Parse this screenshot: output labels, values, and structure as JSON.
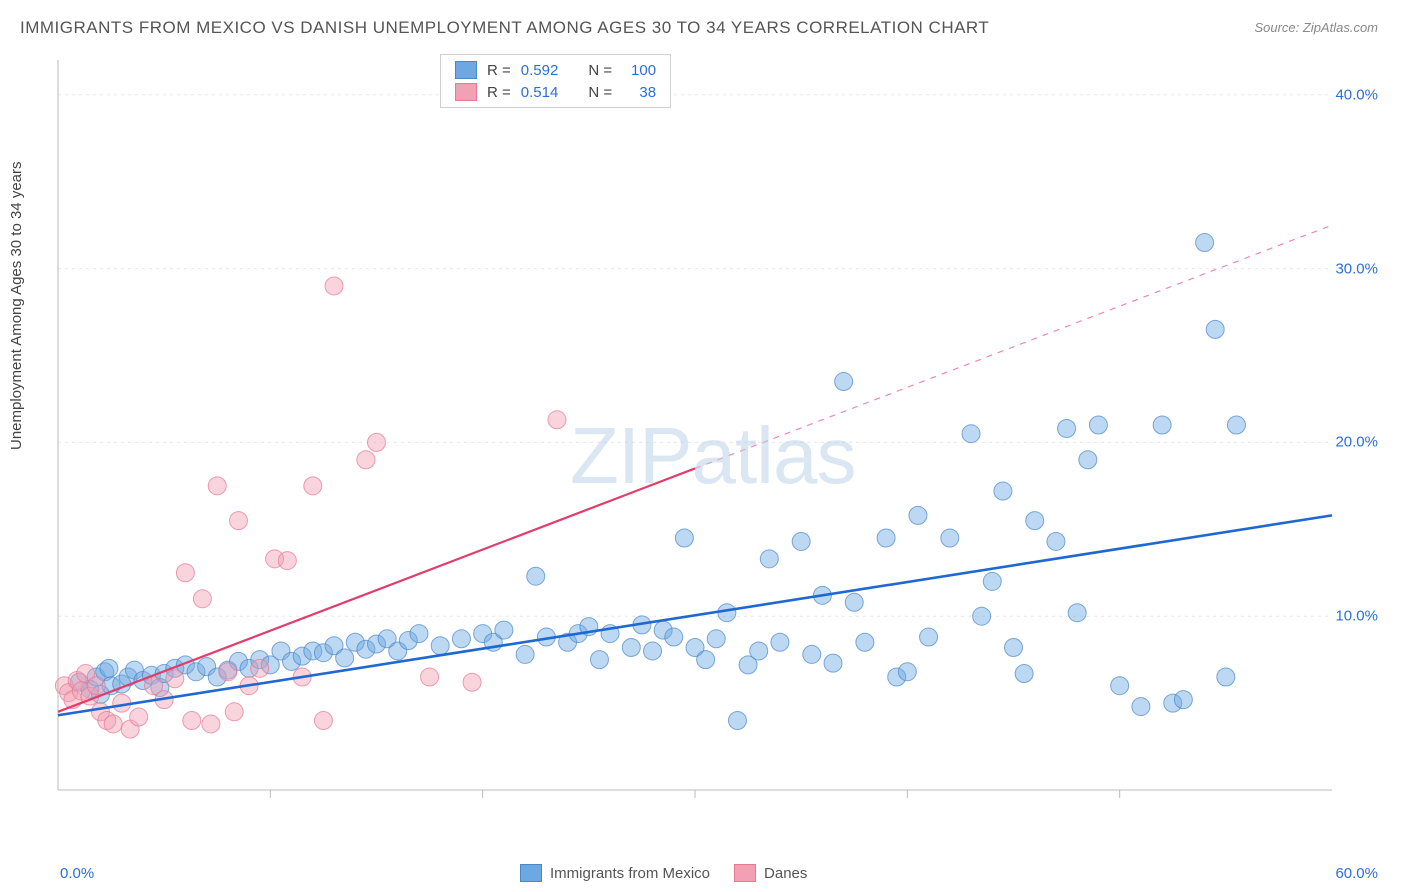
{
  "title": "IMMIGRANTS FROM MEXICO VS DANISH UNEMPLOYMENT AMONG AGES 30 TO 34 YEARS CORRELATION CHART",
  "source_label": "Source: ZipAtlas.com",
  "watermark": "ZIPatlas",
  "ylabel": "Unemployment Among Ages 30 to 34 years",
  "chart": {
    "type": "scatter",
    "background_color": "#ffffff",
    "grid_color": "#e8e8e8",
    "axis_color": "#bbbbbb",
    "xlim": [
      0,
      60
    ],
    "ylim": [
      0,
      42
    ],
    "x_axis": {
      "min_label": "0.0%",
      "max_label": "60.0%",
      "label_color": "#2b6fd6"
    },
    "y_axis": {
      "ticks": [
        10,
        20,
        30,
        40
      ],
      "tick_labels": [
        "10.0%",
        "20.0%",
        "30.0%",
        "40.0%"
      ],
      "label_color": "#2b6fd6"
    },
    "marker_radius": 9,
    "marker_opacity": 0.45,
    "series": [
      {
        "key": "mexico",
        "label": "Immigrants from Mexico",
        "color": "#6da8e2",
        "stroke": "#4a88c8",
        "R": "0.592",
        "N": "100",
        "trend": {
          "x1": 0,
          "y1": 4.3,
          "x2": 60,
          "y2": 15.8,
          "width": 2.6,
          "color": "#1f68d1",
          "dash": ""
        },
        "points": [
          [
            1,
            6.2
          ],
          [
            1.5,
            5.8
          ],
          [
            1.8,
            6.5
          ],
          [
            2,
            5.5
          ],
          [
            2.2,
            6.8
          ],
          [
            2.5,
            6.0
          ],
          [
            2.4,
            7.0
          ],
          [
            3,
            6.1
          ],
          [
            3.3,
            6.5
          ],
          [
            3.6,
            6.9
          ],
          [
            4,
            6.3
          ],
          [
            4.4,
            6.6
          ],
          [
            4.8,
            5.9
          ],
          [
            5,
            6.7
          ],
          [
            5.5,
            7.0
          ],
          [
            6,
            7.2
          ],
          [
            6.5,
            6.8
          ],
          [
            7,
            7.1
          ],
          [
            7.5,
            6.5
          ],
          [
            8,
            6.9
          ],
          [
            8.5,
            7.4
          ],
          [
            9,
            7.0
          ],
          [
            9.5,
            7.5
          ],
          [
            10,
            7.2
          ],
          [
            10.5,
            8.0
          ],
          [
            11,
            7.4
          ],
          [
            11.5,
            7.7
          ],
          [
            12,
            8.0
          ],
          [
            12.5,
            7.9
          ],
          [
            13,
            8.3
          ],
          [
            13.5,
            7.6
          ],
          [
            14,
            8.5
          ],
          [
            14.5,
            8.1
          ],
          [
            15,
            8.4
          ],
          [
            15.5,
            8.7
          ],
          [
            16,
            8.0
          ],
          [
            16.5,
            8.6
          ],
          [
            17,
            9.0
          ],
          [
            18,
            8.3
          ],
          [
            19,
            8.7
          ],
          [
            20,
            9.0
          ],
          [
            20.5,
            8.5
          ],
          [
            21,
            9.2
          ],
          [
            22,
            7.8
          ],
          [
            22.5,
            12.3
          ],
          [
            23,
            8.8
          ],
          [
            24,
            8.5
          ],
          [
            24.5,
            9.0
          ],
          [
            25,
            9.4
          ],
          [
            25.5,
            7.5
          ],
          [
            26,
            9.0
          ],
          [
            27,
            8.2
          ],
          [
            27.5,
            9.5
          ],
          [
            28,
            8.0
          ],
          [
            28.5,
            9.2
          ],
          [
            29,
            8.8
          ],
          [
            29.5,
            14.5
          ],
          [
            30,
            8.2
          ],
          [
            30.5,
            7.5
          ],
          [
            31,
            8.7
          ],
          [
            31.5,
            10.2
          ],
          [
            32,
            4.0
          ],
          [
            32.5,
            7.2
          ],
          [
            33,
            8.0
          ],
          [
            33.5,
            13.3
          ],
          [
            34,
            8.5
          ],
          [
            35,
            14.3
          ],
          [
            35.5,
            7.8
          ],
          [
            36,
            11.2
          ],
          [
            36.5,
            7.3
          ],
          [
            37,
            23.5
          ],
          [
            37.5,
            10.8
          ],
          [
            38,
            8.5
          ],
          [
            39,
            14.5
          ],
          [
            39.5,
            6.5
          ],
          [
            40,
            6.8
          ],
          [
            40.5,
            15.8
          ],
          [
            41,
            8.8
          ],
          [
            42,
            14.5
          ],
          [
            43,
            20.5
          ],
          [
            43.5,
            10.0
          ],
          [
            44,
            12.0
          ],
          [
            44.5,
            17.2
          ],
          [
            45,
            8.2
          ],
          [
            45.5,
            6.7
          ],
          [
            46,
            15.5
          ],
          [
            47,
            14.3
          ],
          [
            47.5,
            20.8
          ],
          [
            48,
            10.2
          ],
          [
            48.5,
            19.0
          ],
          [
            49,
            21.0
          ],
          [
            50,
            6.0
          ],
          [
            51,
            4.8
          ],
          [
            52,
            21.0
          ],
          [
            52.5,
            5.0
          ],
          [
            53,
            5.2
          ],
          [
            54,
            31.5
          ],
          [
            54.5,
            26.5
          ],
          [
            55,
            6.5
          ],
          [
            55.5,
            21.0
          ]
        ]
      },
      {
        "key": "danes",
        "label": "Danes",
        "color": "#f2a0b3",
        "stroke": "#e67891",
        "R": "0.514",
        "N": "38",
        "trend": {
          "x1": 0,
          "y1": 4.5,
          "x2": 30,
          "y2": 18.5,
          "width": 2.2,
          "color": "#e23d6a",
          "dash": "",
          "ext_x2": 60,
          "ext_y2": 32.5,
          "ext_dash": "6,6"
        },
        "points": [
          [
            0.3,
            6.0
          ],
          [
            0.5,
            5.6
          ],
          [
            0.7,
            5.2
          ],
          [
            0.9,
            6.3
          ],
          [
            1.1,
            5.7
          ],
          [
            1.3,
            6.7
          ],
          [
            1.5,
            5.4
          ],
          [
            1.8,
            6.0
          ],
          [
            2.0,
            4.5
          ],
          [
            2.3,
            4.0
          ],
          [
            2.6,
            3.8
          ],
          [
            3.0,
            5.0
          ],
          [
            3.4,
            3.5
          ],
          [
            3.8,
            4.2
          ],
          [
            4.5,
            6.0
          ],
          [
            5.0,
            5.2
          ],
          [
            5.5,
            6.4
          ],
          [
            6.0,
            12.5
          ],
          [
            6.3,
            4.0
          ],
          [
            6.8,
            11.0
          ],
          [
            7.2,
            3.8
          ],
          [
            7.5,
            17.5
          ],
          [
            8.0,
            6.8
          ],
          [
            8.3,
            4.5
          ],
          [
            8.5,
            15.5
          ],
          [
            9.0,
            6.0
          ],
          [
            9.5,
            7.0
          ],
          [
            10.2,
            13.3
          ],
          [
            10.8,
            13.2
          ],
          [
            11.5,
            6.5
          ],
          [
            12.0,
            17.5
          ],
          [
            12.5,
            4.0
          ],
          [
            13.0,
            29.0
          ],
          [
            14.5,
            19.0
          ],
          [
            15.0,
            20.0
          ],
          [
            17.5,
            6.5
          ],
          [
            19.5,
            6.2
          ],
          [
            23.5,
            21.3
          ]
        ]
      }
    ]
  },
  "legend_stats": {
    "R_label": "R =",
    "N_label": "N =",
    "value_color": "#2b6fd6"
  }
}
